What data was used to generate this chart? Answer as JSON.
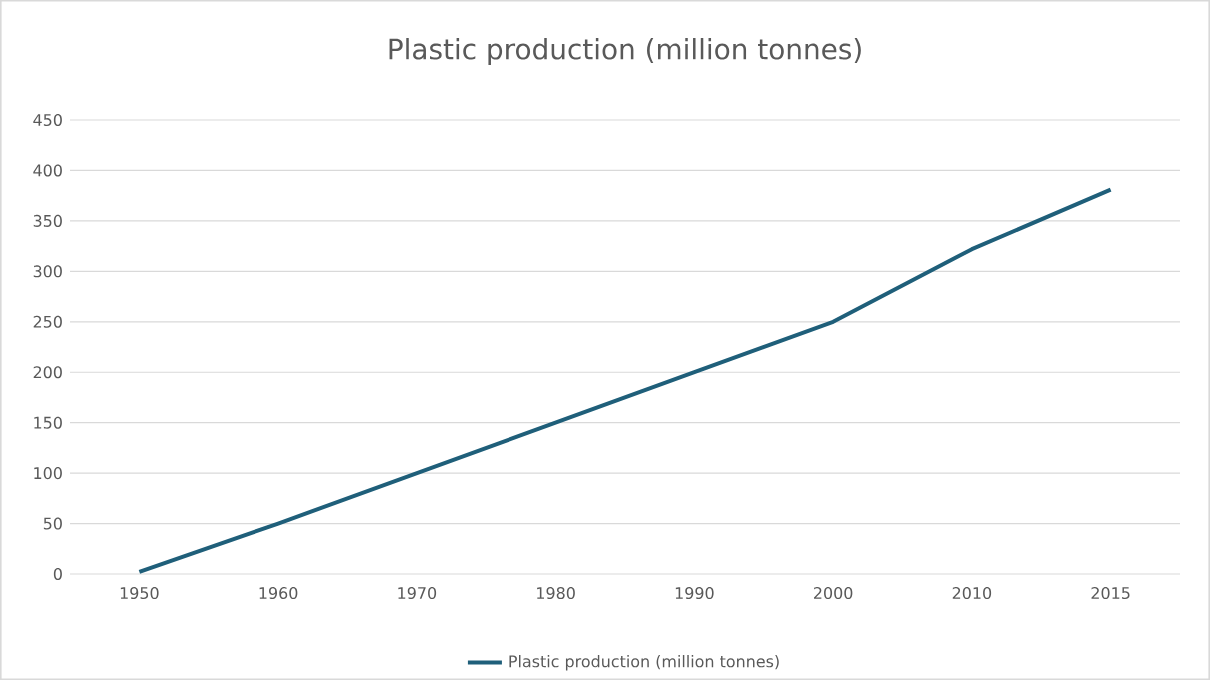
{
  "chart_data": {
    "type": "line",
    "title": "Plastic production (million tonnes)",
    "categories": [
      "1950",
      "1960",
      "1970",
      "1980",
      "1990",
      "2000",
      "2010",
      "2015"
    ],
    "series": [
      {
        "name": "Plastic production (million tonnes)",
        "color": "#1f5f7a",
        "values": [
          2,
          50,
          100,
          150,
          200,
          250,
          322,
          381
        ]
      }
    ],
    "ylim": [
      0,
      450
    ],
    "yticks": [
      0,
      50,
      100,
      150,
      200,
      250,
      300,
      350,
      400,
      450
    ],
    "grid": "y",
    "legend": "bottom",
    "marker": "none",
    "line_style": "solid"
  }
}
